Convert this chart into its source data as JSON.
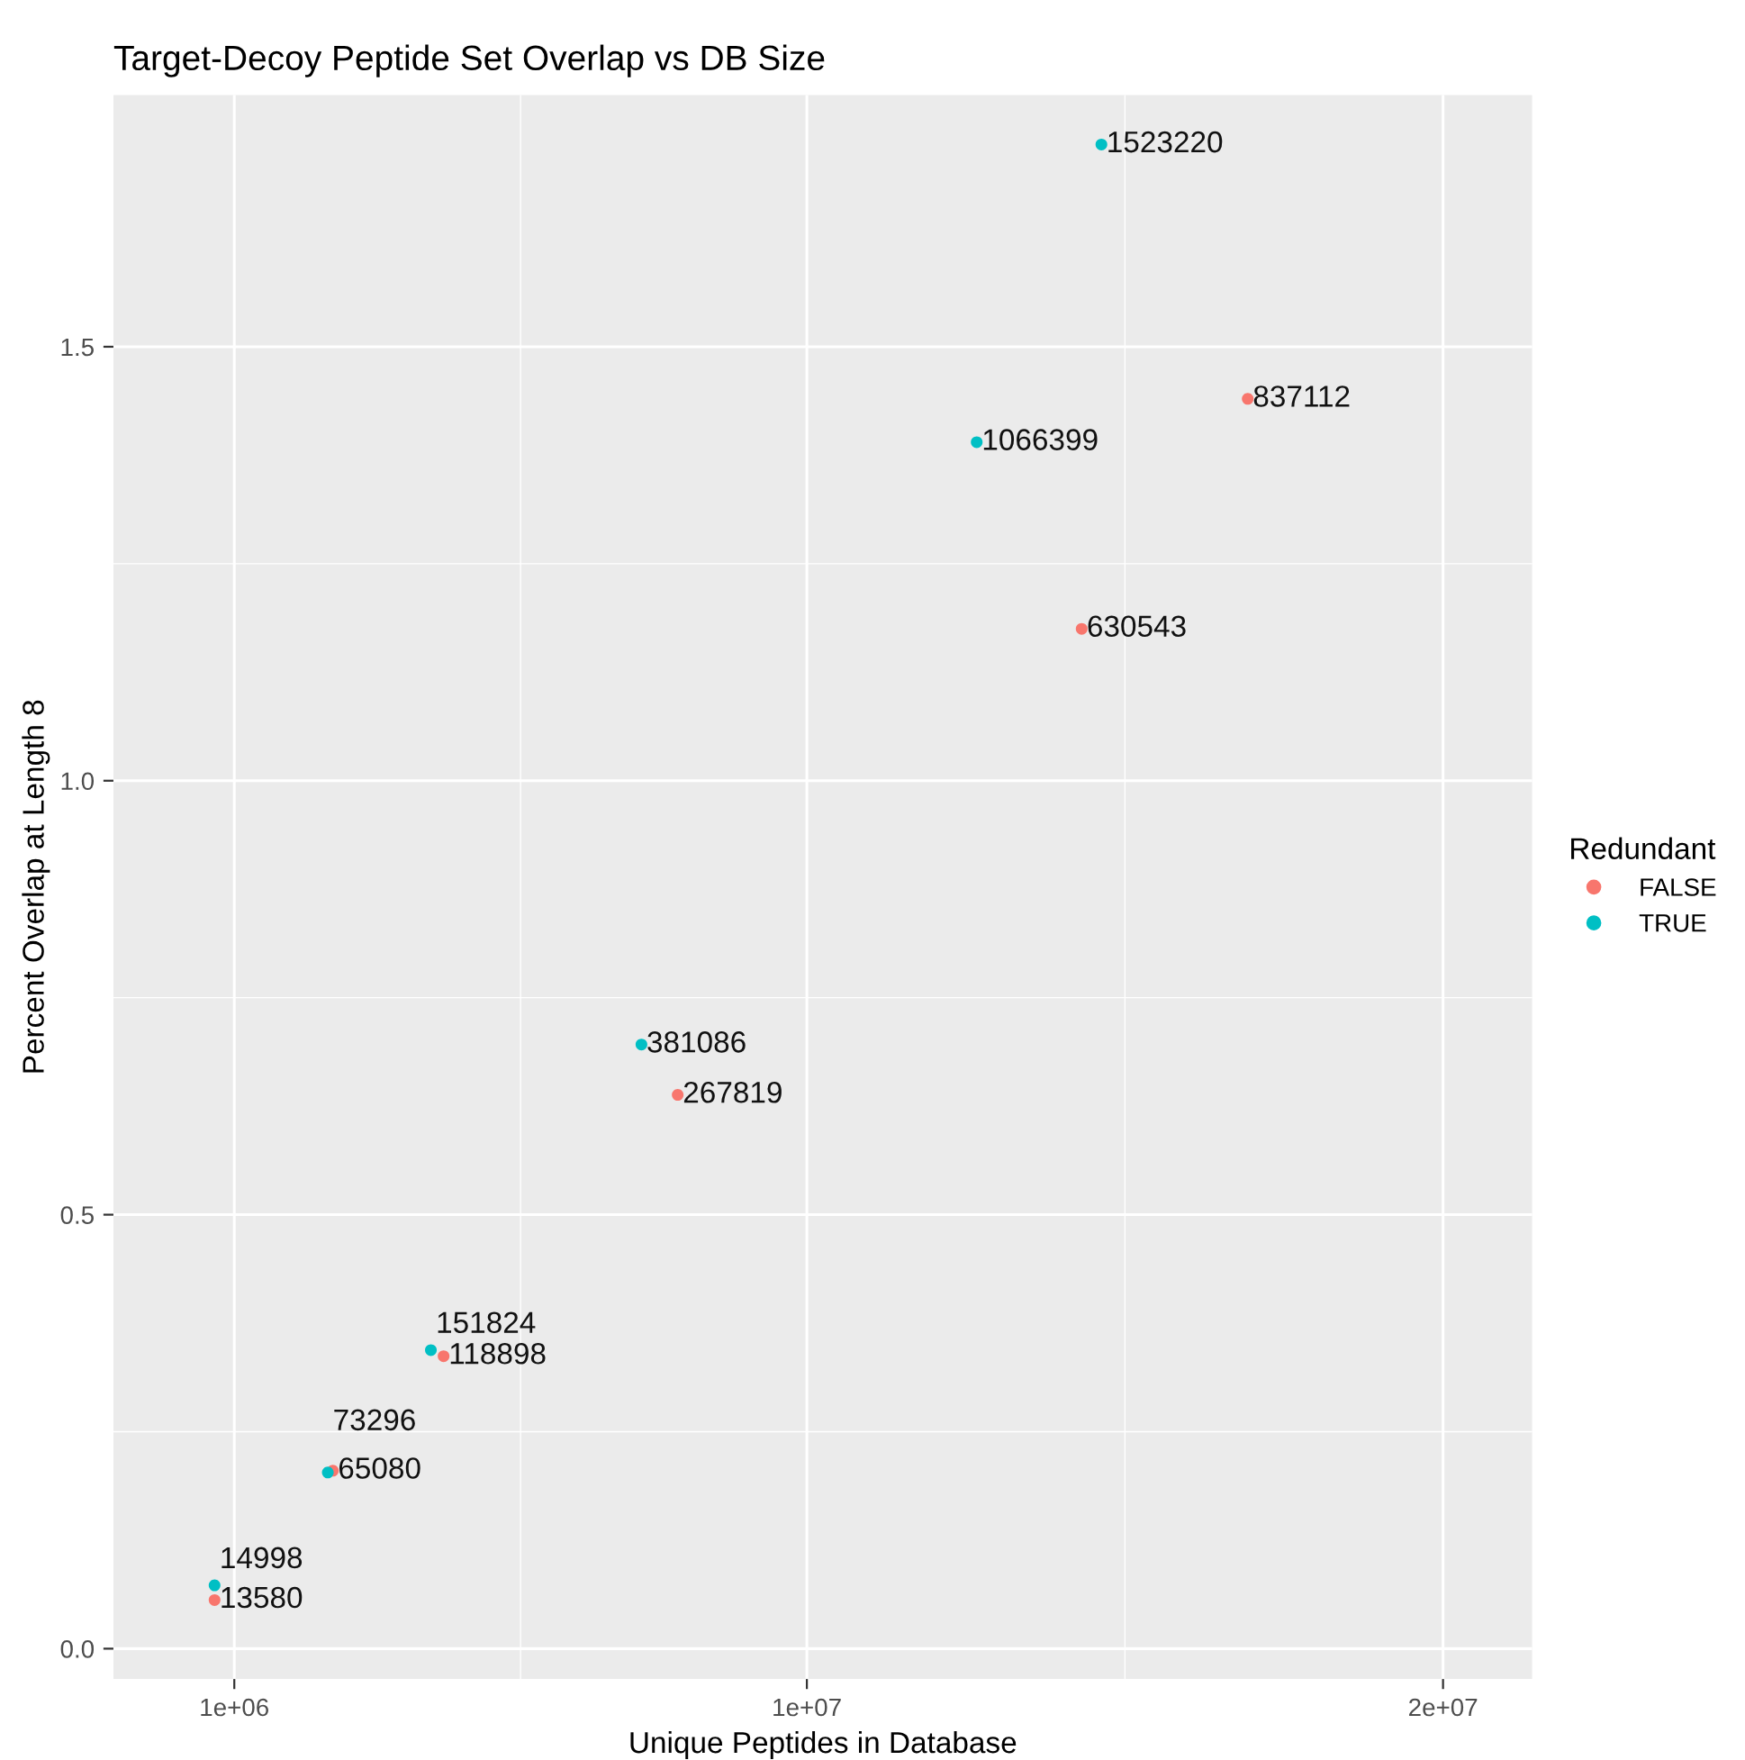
{
  "chart_data": {
    "type": "scatter",
    "title": "Target-Decoy Peptide Set Overlap vs DB Size",
    "xlabel": "Unique Peptides in Database",
    "ylabel": "Percent Overlap at Length 8",
    "legend_title": "Redundant",
    "legend": "right",
    "grid": true,
    "marker": "circle",
    "xlim": [
      -900000,
      21400000
    ],
    "xticks": [
      {
        "value": 1000000,
        "label": "1e+06"
      },
      {
        "value": 10000000,
        "label": "1e+07"
      },
      {
        "value": 20000000,
        "label": "2e+07"
      }
    ],
    "ylim": [
      -0.035,
      1.79
    ],
    "yticks": [
      {
        "value": 0,
        "label": "0.0"
      },
      0.5,
      {
        "value": 1,
        "label": "1.0"
      },
      1.5
    ],
    "series": [
      {
        "name": "FALSE",
        "color": "#f8766d",
        "x": [
          690000,
          2550000,
          4290000,
          7970000,
          14320000,
          16930000
        ],
        "values": [
          0.056,
          0.205,
          0.337,
          0.638,
          1.175,
          1.44
        ]
      },
      {
        "name": "TRUE",
        "color": "#00bfc4",
        "x": [
          690000,
          2470000,
          4090000,
          7400000,
          12670000,
          14630000
        ],
        "values": [
          0.073,
          0.203,
          0.344,
          0.696,
          1.39,
          1.733
        ]
      }
    ],
    "annotations": [
      {
        "text": "13580",
        "x": 690000,
        "y": 0.056
      },
      {
        "text": "65080",
        "x": 2550000,
        "y": 0.205
      },
      {
        "text": "118898",
        "x": 4290000,
        "y": 0.337
      },
      {
        "text": "267819",
        "x": 7970000,
        "y": 0.638
      },
      {
        "text": "630543",
        "x": 14320000,
        "y": 1.175
      },
      {
        "text": "837112",
        "x": 16930000,
        "y": 1.44
      },
      {
        "text": "14998",
        "x": 690000,
        "y": 0.073
      },
      {
        "text": "73296",
        "x": 2470000,
        "y": 0.203
      },
      {
        "text": "151824",
        "x": 4090000,
        "y": 0.344
      },
      {
        "text": "381086",
        "x": 7400000,
        "y": 0.696
      },
      {
        "text": "1066399",
        "x": 12670000,
        "y": 1.39
      },
      {
        "text": "1523220",
        "x": 14630000,
        "y": 1.733
      }
    ]
  }
}
